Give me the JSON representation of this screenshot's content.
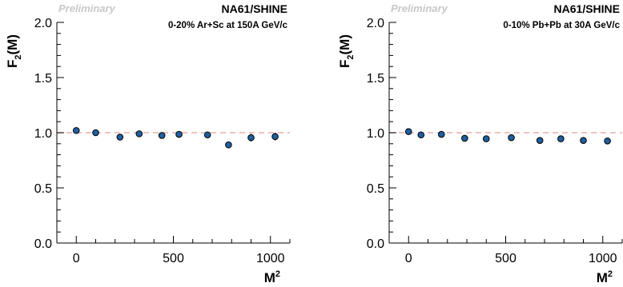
{
  "chart_data": [
    {
      "type": "scatter",
      "preliminary_label": "Preliminary",
      "experiment_label": "NA61/SHINE",
      "system_label": "0-20% Ar+Sc at 150A GeV/c",
      "xlabel": "M",
      "xlabel_sup": "2",
      "ylabel": "F",
      "ylabel_sub": "2",
      "ylabel_suffix": "(M)",
      "xlim": [
        -100,
        1100
      ],
      "ylim": [
        0.0,
        2.0
      ],
      "xticks": [
        0,
        500,
        1000
      ],
      "xtick_labels": [
        "0",
        "500",
        "1000"
      ],
      "yticks": [
        0.0,
        0.5,
        1.0,
        1.5,
        2.0
      ],
      "ytick_labels": [
        "0.0",
        "0.5",
        "1.0",
        "1.5",
        "2.0"
      ],
      "reference_line_y": 1.0,
      "points": [
        {
          "x": 0,
          "y": 1.02,
          "err": 0.01
        },
        {
          "x": 100,
          "y": 1.0,
          "err": 0.015
        },
        {
          "x": 225,
          "y": 0.96,
          "err": 0.02
        },
        {
          "x": 324,
          "y": 0.99,
          "err": 0.02
        },
        {
          "x": 441,
          "y": 0.975,
          "err": 0.02
        },
        {
          "x": 529,
          "y": 0.985,
          "err": 0.025
        },
        {
          "x": 676,
          "y": 0.98,
          "err": 0.03
        },
        {
          "x": 784,
          "y": 0.89,
          "err": 0.03
        },
        {
          "x": 900,
          "y": 0.955,
          "err": 0.035
        },
        {
          "x": 1024,
          "y": 0.965,
          "err": 0.035
        }
      ],
      "colors": {
        "marker": "#1f5fa0",
        "reference_line": "#e8b0a8"
      }
    },
    {
      "type": "scatter",
      "preliminary_label": "Preliminary",
      "experiment_label": "NA61/SHINE",
      "system_label": "0-10% Pb+Pb at 30A GeV/c",
      "xlabel": "M",
      "xlabel_sup": "2",
      "ylabel": "F",
      "ylabel_sub": "2",
      "ylabel_suffix": "(M)",
      "xlim": [
        -100,
        1100
      ],
      "ylim": [
        0.0,
        2.0
      ],
      "xticks": [
        0,
        500,
        1000
      ],
      "xtick_labels": [
        "0",
        "500",
        "1000"
      ],
      "yticks": [
        0.0,
        0.5,
        1.0,
        1.5,
        2.0
      ],
      "ytick_labels": [
        "0.0",
        "0.5",
        "1.0",
        "1.5",
        "2.0"
      ],
      "reference_line_y": 1.0,
      "points": [
        {
          "x": 0,
          "y": 1.01,
          "err": 0.0
        },
        {
          "x": 64,
          "y": 0.98,
          "err": 0.0
        },
        {
          "x": 169,
          "y": 0.985,
          "err": 0.0
        },
        {
          "x": 289,
          "y": 0.95,
          "err": 0.0
        },
        {
          "x": 400,
          "y": 0.945,
          "err": 0.0
        },
        {
          "x": 529,
          "y": 0.955,
          "err": 0.0
        },
        {
          "x": 676,
          "y": 0.93,
          "err": 0.0
        },
        {
          "x": 784,
          "y": 0.945,
          "err": 0.0
        },
        {
          "x": 900,
          "y": 0.93,
          "err": 0.0
        },
        {
          "x": 1024,
          "y": 0.925,
          "err": 0.0
        }
      ],
      "colors": {
        "marker": "#1f5fa0",
        "reference_line": "#e8b0a8"
      }
    }
  ]
}
